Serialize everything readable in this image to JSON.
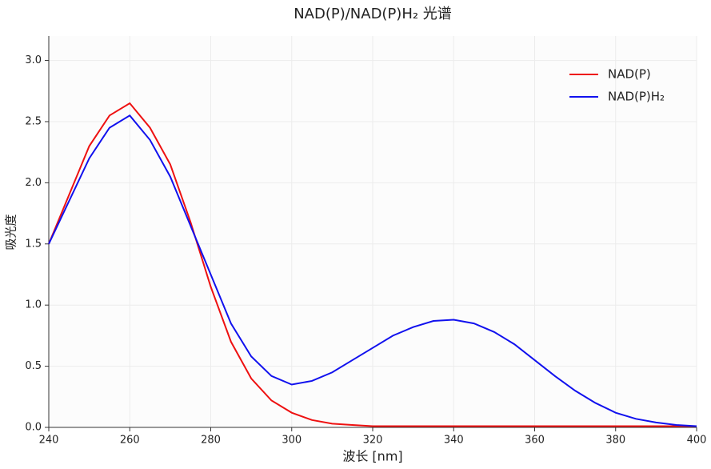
{
  "chart_data": {
    "type": "line",
    "title": "NAD(P)/NAD(P)H₂ 光谱",
    "x_label": "波长 [nm]",
    "y_label": "吸光度",
    "x": [
      240,
      245,
      250,
      255,
      260,
      265,
      270,
      275,
      280,
      285,
      290,
      295,
      300,
      305,
      310,
      315,
      320,
      325,
      330,
      335,
      340,
      345,
      350,
      355,
      360,
      365,
      370,
      375,
      380,
      385,
      390,
      395,
      400
    ],
    "series": [
      {
        "name": "NAD(P)",
        "color": "#ee1111",
        "values": [
          1.5,
          1.9,
          2.3,
          2.55,
          2.65,
          2.45,
          2.15,
          1.68,
          1.15,
          0.7,
          0.4,
          0.22,
          0.12,
          0.06,
          0.03,
          0.02,
          0.01,
          0.01,
          0.01,
          0.01,
          0.01,
          0.01,
          0.01,
          0.01,
          0.01,
          0.01,
          0.01,
          0.01,
          0.01,
          0.01,
          0.01,
          0.01,
          0.01
        ]
      },
      {
        "name": "NAD(P)H₂",
        "color": "#1111ee",
        "values": [
          1.5,
          1.85,
          2.2,
          2.45,
          2.55,
          2.35,
          2.05,
          1.65,
          1.25,
          0.85,
          0.58,
          0.42,
          0.35,
          0.38,
          0.45,
          0.55,
          0.65,
          0.75,
          0.82,
          0.87,
          0.88,
          0.85,
          0.78,
          0.68,
          0.55,
          0.42,
          0.3,
          0.2,
          0.12,
          0.07,
          0.04,
          0.02,
          0.01
        ]
      }
    ],
    "xlim": [
      240,
      400
    ],
    "xticks": [
      240,
      260,
      280,
      300,
      320,
      340,
      360,
      380,
      400
    ],
    "ylim": [
      0,
      3.2
    ],
    "yticks": [
      {
        "value": 0,
        "label": "0.0"
      },
      {
        "value": 0.5,
        "label": "0.5"
      },
      {
        "value": 1,
        "label": "1.0"
      },
      {
        "value": 1.5,
        "label": "1.5"
      },
      {
        "value": 2,
        "label": "2.0"
      },
      {
        "value": 2.5,
        "label": "2.5"
      },
      {
        "value": 3,
        "label": "3.0"
      }
    ],
    "grid": true,
    "legend": "upper-right"
  }
}
